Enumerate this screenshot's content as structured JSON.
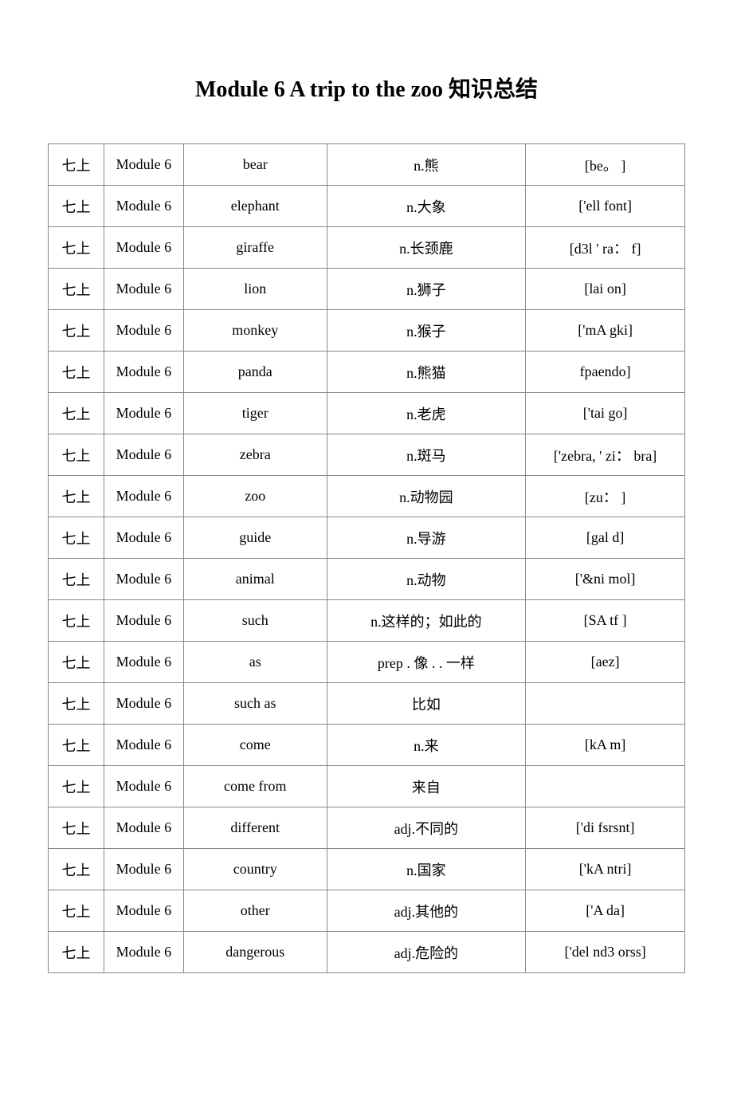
{
  "title": "Module 6 A trip to the zoo 知识总结",
  "table": {
    "columns": [
      "grade",
      "module",
      "word",
      "meaning",
      "phonetic"
    ],
    "col_classes": [
      "col-grade",
      "col-module",
      "col-word",
      "col-meaning",
      "col-phon"
    ],
    "rows": [
      [
        "七上",
        "Module 6",
        "bear",
        "n.熊",
        "[be。 ]"
      ],
      [
        "七上",
        "Module 6",
        "elephant",
        "n.大象",
        "['ell font]"
      ],
      [
        "七上",
        "Module 6",
        "giraffe",
        "n.长颈鹿",
        "[d3l ' ra：   f]"
      ],
      [
        "七上",
        "Module 6",
        "lion",
        "n.狮子",
        "[lai on]"
      ],
      [
        "七上",
        "Module 6",
        "monkey",
        "n.猴子",
        "['mA gki]"
      ],
      [
        "七上",
        "Module 6",
        "panda",
        "n.熊猫",
        "fpaendo]"
      ],
      [
        "七上",
        "Module 6",
        "tiger",
        "n.老虎",
        "['tai go]"
      ],
      [
        "七上",
        "Module 6",
        "zebra",
        "n.斑马",
        "['zebra, ' zi：   bra]"
      ],
      [
        "七上",
        "Module 6",
        "zoo",
        "n.动物园",
        "[zu：  ]"
      ],
      [
        "七上",
        "Module 6",
        "guide",
        "n.导游",
        "[gal d]"
      ],
      [
        "七上",
        "Module 6",
        "animal",
        "n.动物",
        "['&ni mol]"
      ],
      [
        "七上",
        "Module 6",
        "such",
        "n.这样的；如此的",
        "[SA tf ]"
      ],
      [
        "七上",
        "Module 6",
        "as",
        "prep . 像 . . 一样",
        "[aez]"
      ],
      [
        "七上",
        "Module 6",
        "such as",
        "比如",
        ""
      ],
      [
        "七上",
        "Module 6",
        "come",
        "n.来",
        "[kA m]"
      ],
      [
        "七上",
        "Module 6",
        "come from",
        "来自",
        ""
      ],
      [
        "七上",
        "Module 6",
        "different",
        "adj.不同的",
        "['di fsrsnt]"
      ],
      [
        "七上",
        "Module 6",
        "country",
        "n.国家",
        "['kA ntri]"
      ],
      [
        "七上",
        "Module 6",
        "other",
        "adj.其他的",
        "['A da]"
      ],
      [
        "七上",
        "Module 6",
        "dangerous",
        "adj.危险的",
        "['del nd3 orss]"
      ]
    ]
  }
}
